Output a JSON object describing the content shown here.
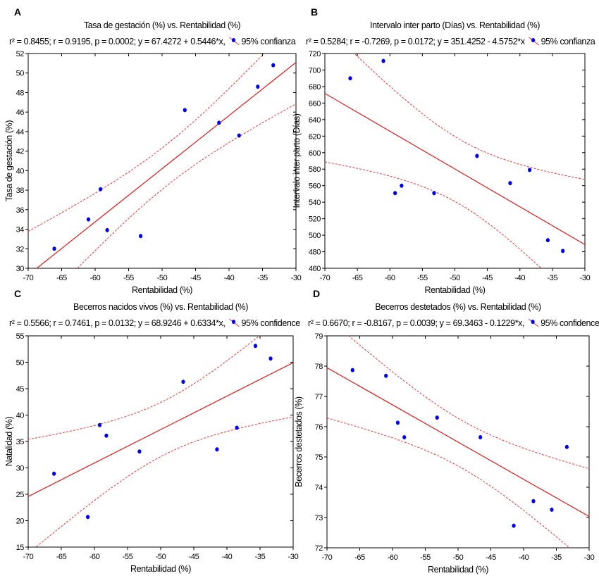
{
  "chart_data": [
    {
      "type": "scatter",
      "panel_label": "A",
      "title": "Tasa de gestación (%) vs. Rentabilidad (%)",
      "stats": "r² = 0.8455; r = 0.9195, p = 0.0002;  y = 67.4272 + 0.5446*x,",
      "legend": "95% confianza",
      "xlabel": "Rentabilidad (%)",
      "ylabel": "Tasa de gestación (%)",
      "xlim": [
        -70,
        -30
      ],
      "xstep": 5,
      "ylim": [
        30,
        52
      ],
      "ystep": 2,
      "fit": {
        "intercept": 67.4272,
        "slope": 0.5446
      },
      "x": [
        -66.1,
        -61.0,
        -59.2,
        -58.2,
        -53.2,
        -46.6,
        -41.5,
        -38.5,
        -35.7,
        -33.4
      ],
      "y": [
        32.0,
        35.0,
        38.1,
        33.9,
        33.3,
        46.2,
        44.9,
        43.6,
        48.6,
        50.8
      ]
    },
    {
      "type": "scatter",
      "panel_label": "B",
      "title": "Intervalo inter parto (Días) vs. Rentabilidad (%)",
      "stats": "r² = 0.5284;  r = -0.7269, p = 0.0172;  y = 351.4252 - 4.5752*x",
      "legend": "95% confianza",
      "xlabel": "Rentabilidad (%)",
      "ylabel": "Intervalo inter parto (Días)",
      "xlim": [
        -70,
        -30
      ],
      "xstep": 5,
      "ylim": [
        460,
        720
      ],
      "ystep": 20,
      "fit": {
        "intercept": 351.4252,
        "slope": -4.5752
      },
      "x": [
        -66.1,
        -61.0,
        -59.2,
        -58.2,
        -53.2,
        -46.6,
        -41.5,
        -38.5,
        -35.7,
        -33.4
      ],
      "y": [
        690,
        711,
        551,
        560,
        551,
        596,
        563,
        579,
        494,
        481
      ]
    },
    {
      "type": "scatter",
      "panel_label": "C",
      "title": "Becerros nacidos vivos (%) vs. Rentabilidad (%)",
      "stats": "r² = 0.5566;  r = 0.7461, p = 0.0132;  y = 68.9246 + 0.6334*x,",
      "legend": "95% confidence",
      "xlabel": "Rentabilidad (%)",
      "ylabel": "Natalidad (%)",
      "xlim": [
        -70,
        -30
      ],
      "xstep": 5,
      "ylim": [
        15,
        55
      ],
      "ystep": 5,
      "fit": {
        "intercept": 68.9246,
        "slope": 0.6334
      },
      "x": [
        -66.1,
        -61.0,
        -59.2,
        -58.2,
        -53.2,
        -46.6,
        -41.5,
        -38.5,
        -35.7,
        -33.4
      ],
      "y": [
        28.9,
        20.7,
        38.1,
        36.1,
        33.1,
        46.3,
        33.5,
        37.6,
        53.1,
        50.7
      ]
    },
    {
      "type": "scatter",
      "panel_label": "D",
      "title": "Becerros destetados (%) vs. Rentabilidad (%)",
      "stats": "r² = 0.6670;  r = -0.8167, p = 0.0039;  y = 69.3463 - 0.1229*x,",
      "legend": "95% confidence",
      "xlabel": "Rentabilidad (%)",
      "ylabel": "Becerros destetados (%)",
      "xlim": [
        -70,
        -30
      ],
      "xstep": 5,
      "ylim": [
        72,
        79
      ],
      "ystep": 1,
      "fit": {
        "intercept": 69.3463,
        "slope": -0.1229
      },
      "x": [
        -66.1,
        -61.0,
        -59.2,
        -58.2,
        -53.2,
        -46.6,
        -41.5,
        -38.5,
        -35.7,
        -33.4
      ],
      "y": [
        77.87,
        77.68,
        76.13,
        75.65,
        76.3,
        75.65,
        72.73,
        73.54,
        73.26,
        75.33
      ]
    }
  ],
  "colors": {
    "points": "#0000ee",
    "fit_line": "#ee0000",
    "confidence": "#ee3333",
    "axes": "#000000"
  }
}
